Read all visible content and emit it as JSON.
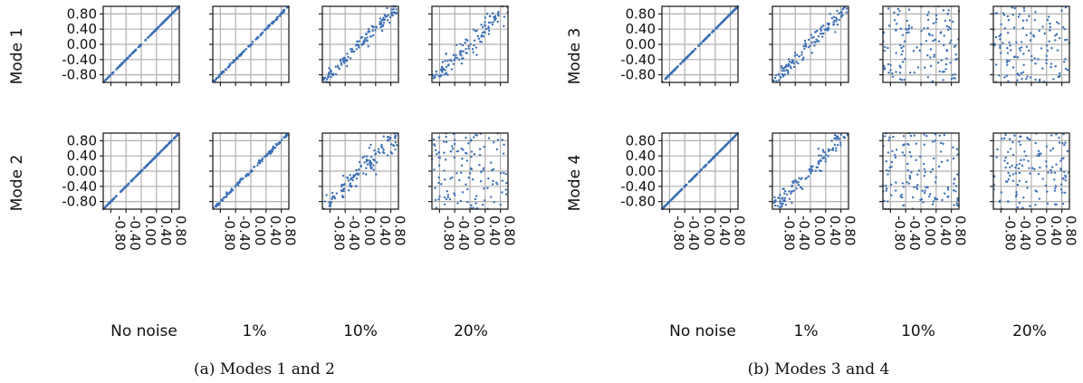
{
  "figure": {
    "point_color": "#3b6fb6",
    "frame_color": "#222222",
    "grid_color": "#b0b0b0",
    "tick_values": [
      -0.8,
      -0.4,
      0.0,
      0.4,
      0.8
    ],
    "tick_labels": [
      "-0.80",
      "-0.40",
      "0.00",
      "0.40",
      "0.80"
    ],
    "columns": [
      "No noise",
      "1%",
      "10%",
      "20%"
    ],
    "axis_range": [
      -1.0,
      1.0
    ]
  },
  "chart_data": [
    {
      "type": "scatter",
      "caption": "(a) Modes 1 and 2",
      "rows": [
        "Mode 1",
        "Mode 2"
      ],
      "columns": [
        "No noise",
        "1%",
        "10%",
        "20%"
      ],
      "xlim": [
        -1.0,
        1.0
      ],
      "ylim": [
        -1.0,
        1.0
      ],
      "xticks": [
        -0.8,
        -0.4,
        0.0,
        0.4,
        0.8
      ],
      "yticks": [
        -0.8,
        -0.4,
        0.0,
        0.4,
        0.8
      ],
      "grid": true,
      "panel_spread": [
        [
          0.0,
          0.03,
          0.18,
          0.32
        ],
        [
          0.0,
          0.05,
          0.35,
          1.0
        ]
      ]
    },
    {
      "type": "scatter",
      "caption": "(b) Modes 3 and 4",
      "rows": [
        "Mode 3",
        "Mode 4"
      ],
      "columns": [
        "No noise",
        "1%",
        "10%",
        "20%"
      ],
      "xlim": [
        -1.0,
        1.0
      ],
      "ylim": [
        -1.0,
        1.0
      ],
      "xticks": [
        -0.8,
        -0.4,
        0.0,
        0.4,
        0.8
      ],
      "yticks": [
        -0.8,
        -0.4,
        0.0,
        0.4,
        0.8
      ],
      "grid": true,
      "panel_spread": [
        [
          0.0,
          0.22,
          1.0,
          1.0
        ],
        [
          0.0,
          0.28,
          1.0,
          1.0
        ]
      ]
    }
  ]
}
